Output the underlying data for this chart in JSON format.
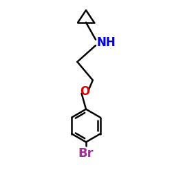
{
  "background_color": "#ffffff",
  "line_color": "#000000",
  "N_color": "#0000dd",
  "O_color": "#dd0000",
  "Br_color": "#993399",
  "line_width": 1.8,
  "figsize": [
    2.5,
    2.5
  ],
  "dpi": 100,
  "font_size_NH": 12,
  "font_size_O": 12,
  "font_size_Br": 13,
  "NH_label": "NH",
  "O_label": "O",
  "Br_label": "Br"
}
